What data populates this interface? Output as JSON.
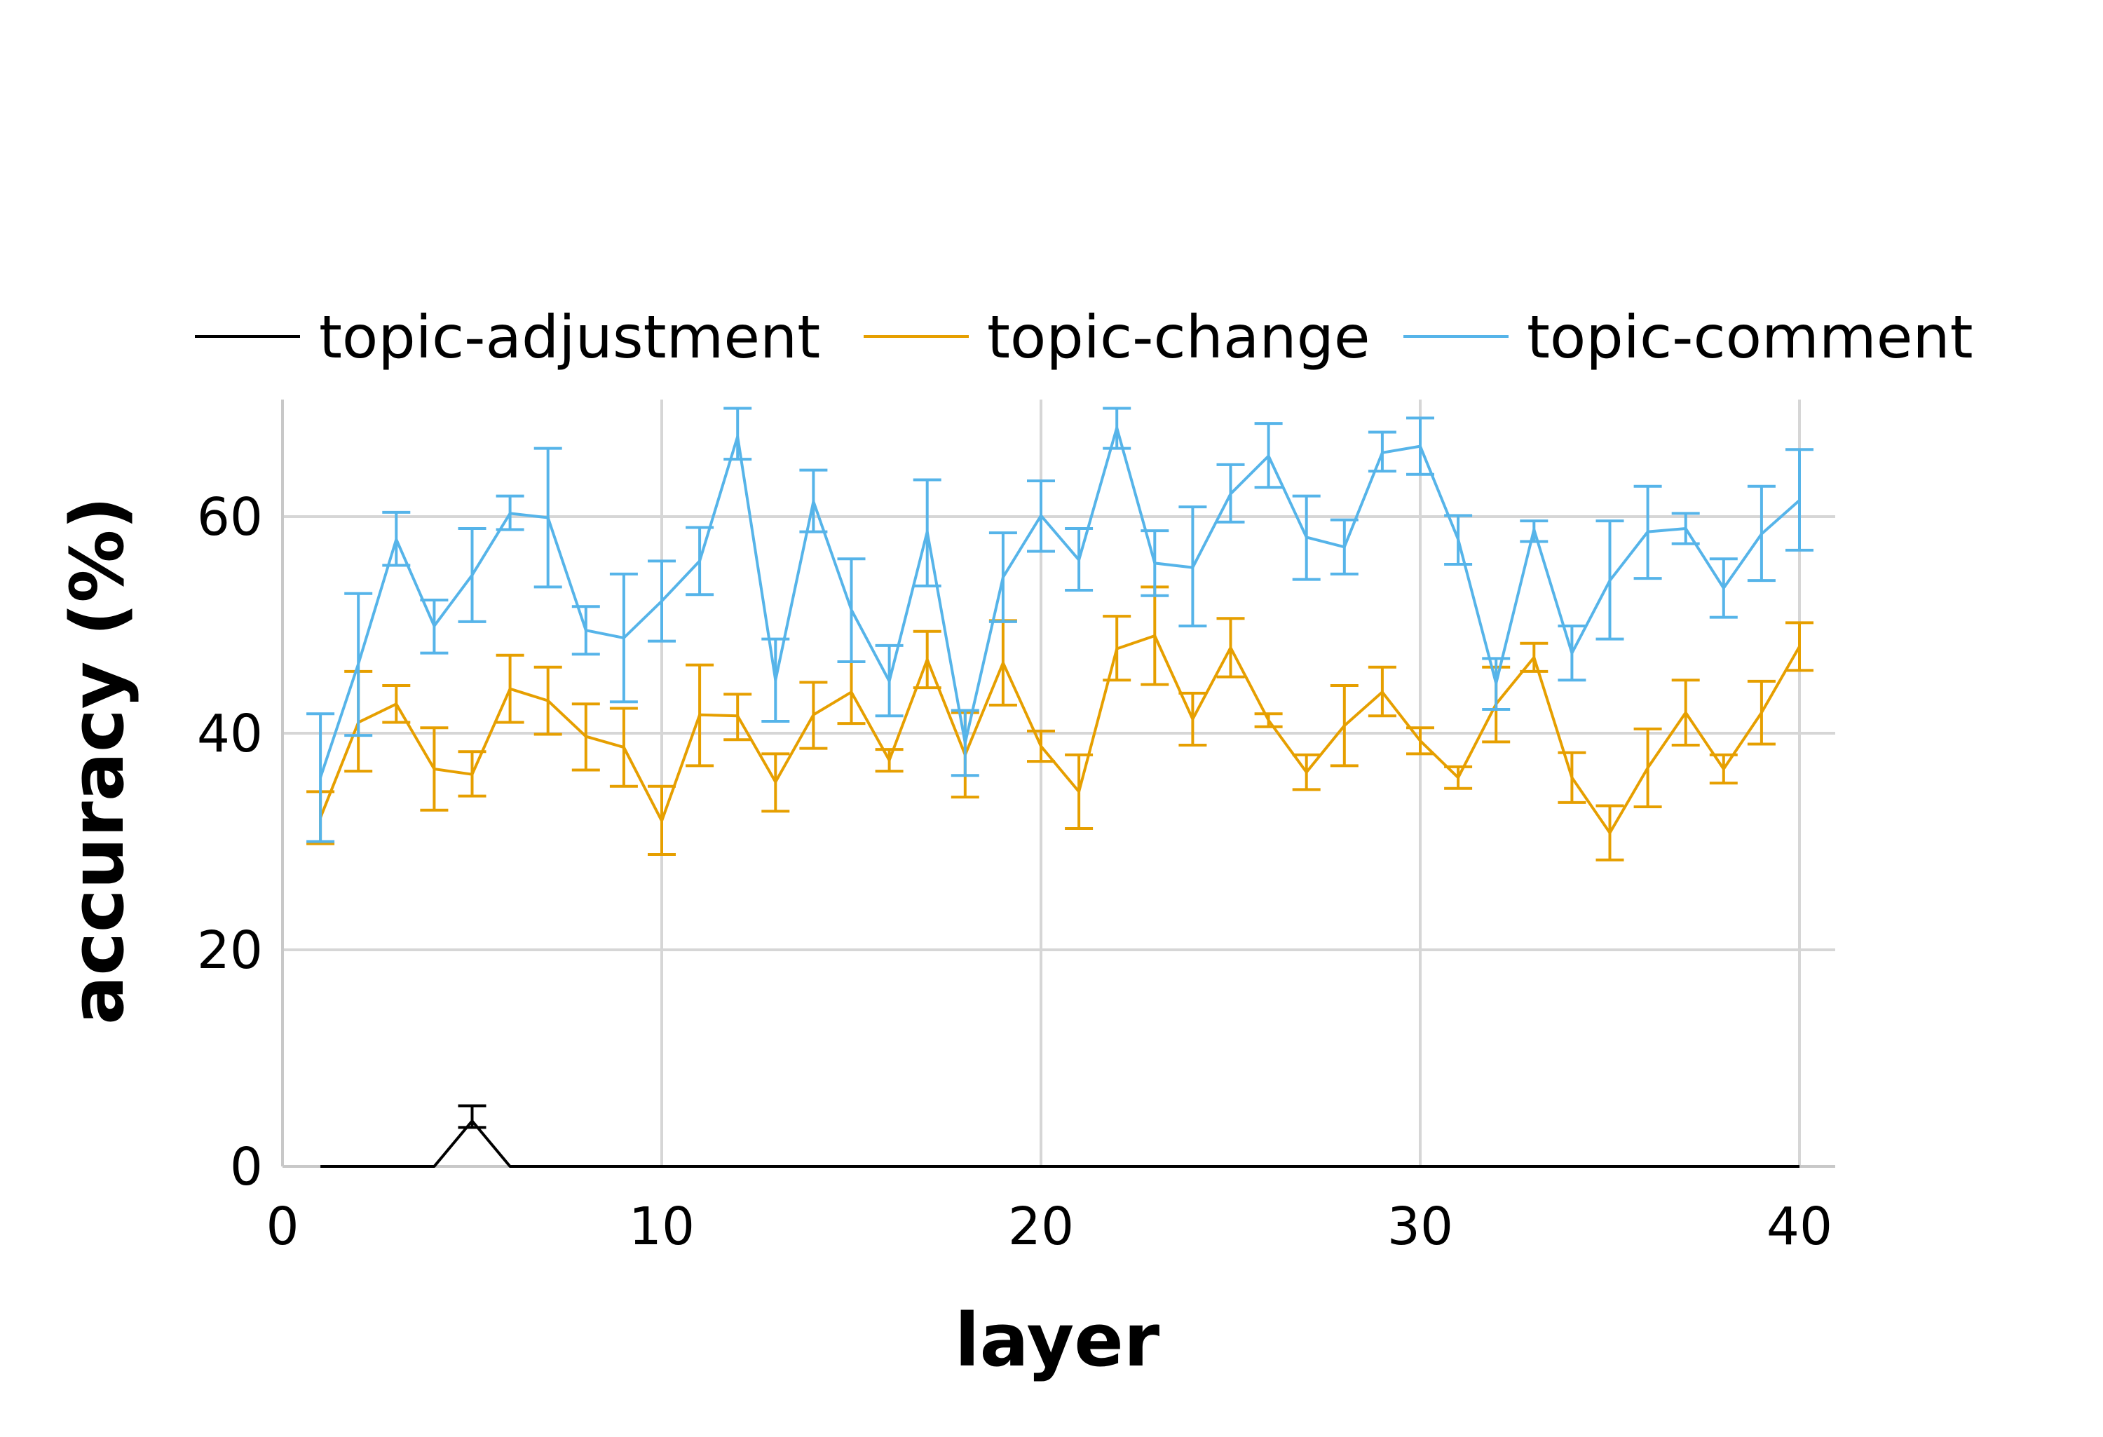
{
  "chart_data": {
    "type": "line",
    "title": "",
    "xlabel": "layer",
    "ylabel": "accuracy (%)",
    "xlim": [
      0,
      40.5
    ],
    "ylim": [
      0,
      70
    ],
    "x_ticks": [
      0,
      10,
      20,
      30,
      40
    ],
    "y_ticks": [
      0,
      20,
      40,
      60
    ],
    "grid": true,
    "legend_position": "top",
    "x": [
      1,
      2,
      3,
      4,
      5,
      6,
      7,
      8,
      9,
      10,
      11,
      12,
      13,
      14,
      15,
      16,
      17,
      18,
      19,
      20,
      21,
      22,
      23,
      24,
      25,
      26,
      27,
      28,
      29,
      30,
      31,
      32,
      33,
      34,
      35,
      36,
      37,
      38,
      39,
      40
    ],
    "series": [
      {
        "name": "topic-adjustment",
        "color": "#000000",
        "values": [
          0,
          0,
          0,
          0,
          4.2,
          0,
          0,
          0,
          0,
          0,
          0,
          0,
          0,
          0,
          0,
          0,
          0,
          0,
          0,
          0,
          0,
          0,
          0,
          0,
          0,
          0,
          0,
          0,
          0,
          0,
          0,
          0,
          0,
          0,
          0,
          0,
          0,
          0,
          0,
          0
        ],
        "err_low": [
          0,
          0,
          0,
          0,
          3.6,
          0,
          0,
          0,
          0,
          0,
          0,
          0,
          0,
          0,
          0,
          0,
          0,
          0,
          0,
          0,
          0,
          0,
          0,
          0,
          0,
          0,
          0,
          0,
          0,
          0,
          0,
          0,
          0,
          0,
          0,
          0,
          0,
          0,
          0,
          0
        ],
        "err_high": [
          0,
          0,
          0,
          0,
          5.6,
          0,
          0,
          0,
          0,
          0,
          0,
          0,
          0,
          0,
          0,
          0,
          0,
          0,
          0,
          0,
          0,
          0,
          0,
          0,
          0,
          0,
          0,
          0,
          0,
          0,
          0,
          0,
          0,
          0,
          0,
          0,
          0,
          0,
          0,
          0
        ]
      },
      {
        "name": "topic-change",
        "color": "#e69f00",
        "values": [
          32.2,
          41.0,
          42.7,
          36.7,
          36.2,
          44.1,
          43.0,
          39.7,
          38.7,
          31.9,
          41.7,
          41.6,
          35.5,
          41.7,
          43.8,
          37.5,
          46.8,
          38.0,
          46.5,
          38.8,
          34.6,
          47.8,
          49.0,
          41.3,
          47.9,
          41.2,
          36.4,
          40.7,
          43.8,
          39.3,
          35.9,
          42.7,
          47.0,
          35.9,
          30.8,
          36.8,
          41.9,
          36.7,
          41.9,
          48.0
        ],
        "err_low": [
          29.8,
          36.5,
          41.0,
          32.9,
          34.2,
          41.0,
          39.9,
          36.6,
          35.1,
          28.8,
          37.0,
          39.4,
          32.8,
          38.6,
          40.9,
          36.5,
          44.2,
          34.1,
          42.6,
          37.4,
          31.2,
          44.9,
          44.5,
          38.9,
          45.2,
          40.6,
          34.8,
          37.0,
          41.6,
          38.1,
          34.9,
          39.2,
          45.7,
          33.6,
          28.3,
          33.2,
          38.9,
          35.4,
          39.0,
          45.8
        ],
        "err_high": [
          34.6,
          45.7,
          44.4,
          40.5,
          38.3,
          47.2,
          46.1,
          42.7,
          42.3,
          35.1,
          46.3,
          43.6,
          38.1,
          44.7,
          46.6,
          38.5,
          49.4,
          41.9,
          50.4,
          40.2,
          38.0,
          50.8,
          53.5,
          43.7,
          50.6,
          41.8,
          38.0,
          44.4,
          46.1,
          40.5,
          36.9,
          46.1,
          48.3,
          38.2,
          33.3,
          40.4,
          44.9,
          38.0,
          44.8,
          50.2
        ]
      },
      {
        "name": "topic-comment",
        "color": "#56b4e9",
        "values": [
          35.9,
          46.4,
          57.9,
          49.9,
          54.6,
          60.3,
          59.9,
          49.5,
          48.8,
          52.2,
          55.9,
          67.4,
          44.9,
          61.4,
          51.4,
          44.8,
          58.6,
          39.1,
          54.4,
          60.1,
          56.0,
          68.2,
          55.7,
          55.3,
          62.1,
          65.6,
          58.1,
          57.2,
          65.9,
          66.5,
          57.9,
          44.6,
          58.8,
          47.4,
          54.1,
          58.6,
          58.9,
          53.4,
          58.4,
          61.5
        ],
        "err_low": [
          30.0,
          39.8,
          55.5,
          47.4,
          50.3,
          58.8,
          53.5,
          47.3,
          42.9,
          48.5,
          52.8,
          65.3,
          41.1,
          58.6,
          46.6,
          41.6,
          53.6,
          36.1,
          50.3,
          56.8,
          53.2,
          66.3,
          52.7,
          49.9,
          59.5,
          62.7,
          54.2,
          54.7,
          64.2,
          63.9,
          55.6,
          42.2,
          57.7,
          44.9,
          48.7,
          54.3,
          57.5,
          50.7,
          54.1,
          56.9
        ],
        "err_high": [
          41.8,
          52.9,
          60.4,
          52.3,
          58.9,
          61.9,
          66.3,
          51.7,
          54.7,
          55.9,
          59.0,
          70.0,
          48.7,
          64.3,
          56.1,
          48.1,
          63.4,
          42.1,
          58.5,
          63.3,
          58.9,
          70.0,
          58.7,
          60.9,
          64.8,
          68.6,
          61.9,
          59.7,
          67.8,
          69.1,
          60.1,
          46.9,
          59.6,
          49.9,
          59.6,
          62.8,
          60.3,
          56.1,
          62.8,
          66.2
        ]
      }
    ]
  }
}
